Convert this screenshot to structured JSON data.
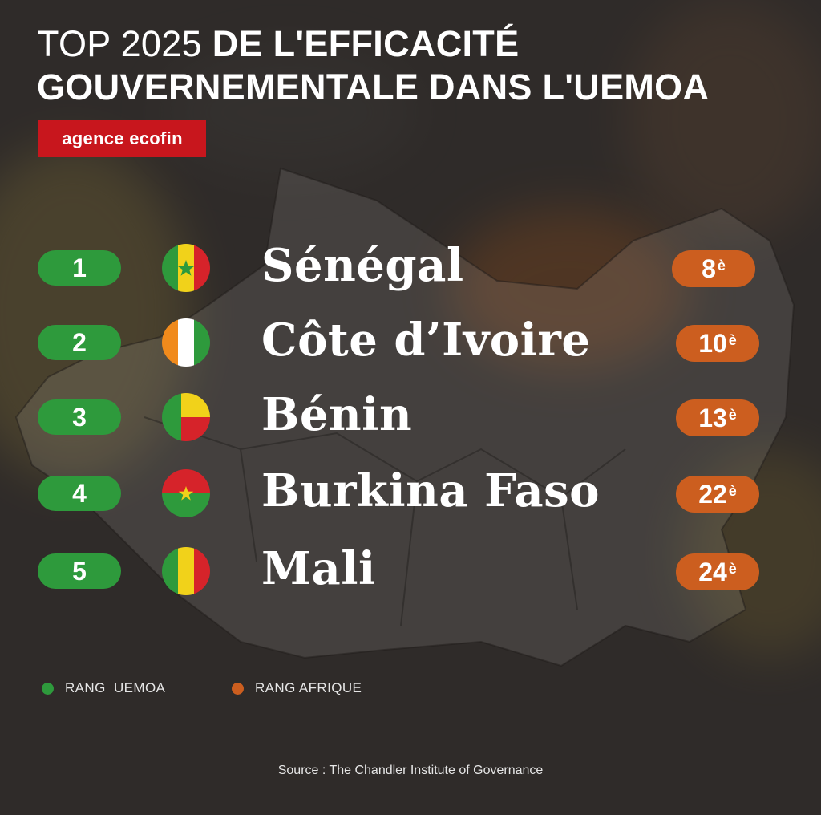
{
  "title": {
    "light": "TOP 2025 ",
    "bold_line1": "DE L'EFFICACITÉ",
    "bold_line2": "GOUVERNEMENTALE DANS L'UEMOA"
  },
  "brand": {
    "label": "agence ecofin",
    "color": "#c8161d"
  },
  "rankings": [
    {
      "uemoa_rank": "1",
      "country": "Sénégal",
      "africa_rank": "8",
      "suffix": "è",
      "flag": "senegal-flag-icon"
    },
    {
      "uemoa_rank": "2",
      "country": "Côte d’Ivoire",
      "africa_rank": "10",
      "suffix": "è",
      "flag": "cote-divoire-flag-icon"
    },
    {
      "uemoa_rank": "3",
      "country": "Bénin",
      "africa_rank": "13",
      "suffix": "è",
      "flag": "benin-flag-icon"
    },
    {
      "uemoa_rank": "4",
      "country": "Burkina Faso",
      "africa_rank": "22",
      "suffix": "è",
      "flag": "burkina-faso-flag-icon"
    },
    {
      "uemoa_rank": "5",
      "country": "Mali",
      "africa_rank": "24",
      "suffix": "è",
      "flag": "mali-flag-icon"
    }
  ],
  "legend": {
    "uemoa": {
      "label": "RANG  UEMOA",
      "color": "#2e9a3c"
    },
    "afrique": {
      "label": "RANG AFRIQUE",
      "color": "#cc5e1f"
    }
  },
  "source": "Source : The Chandler Institute of Governance"
}
